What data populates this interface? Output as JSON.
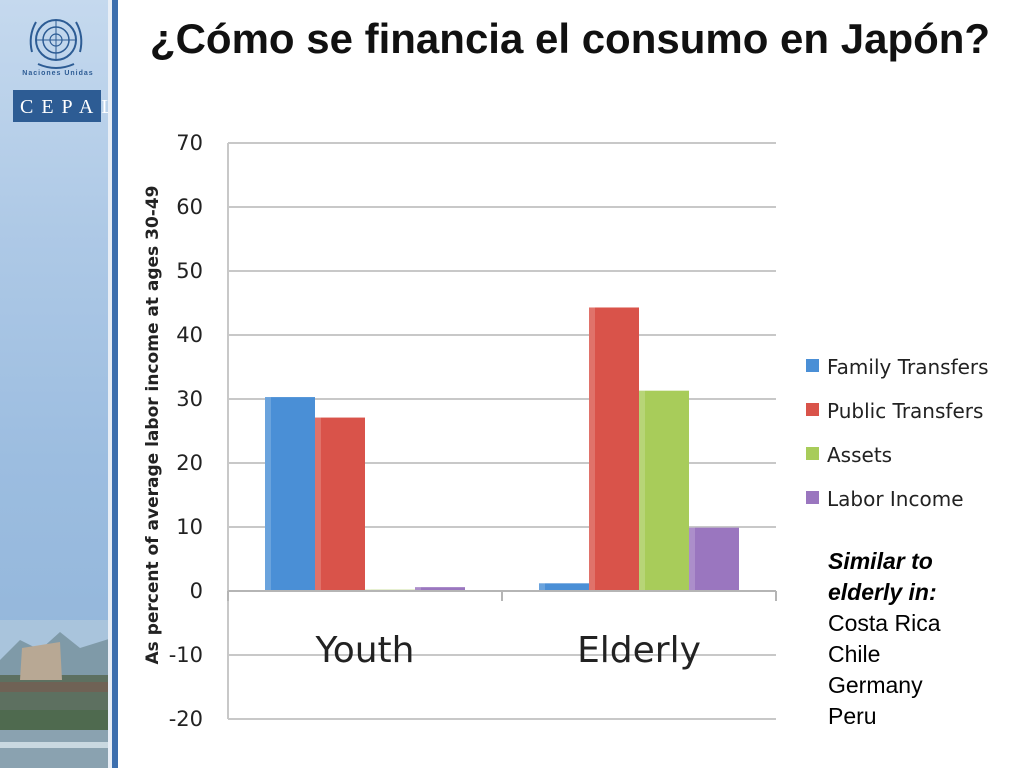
{
  "slide": {
    "title": "¿Cómo se financia el consumo en Japón?"
  },
  "sidebar": {
    "un_label": "Naciones Unidas",
    "cepal_label": "CEPAL"
  },
  "colors": {
    "family_transfers": "#4a8fd6",
    "public_transfers": "#d9534a",
    "assets": "#a8cc5a",
    "labor_income": "#9a76bf"
  },
  "chart_data": {
    "type": "bar",
    "categories": [
      "Youth",
      "Elderly"
    ],
    "series": [
      {
        "name": "Family Transfers",
        "values": [
          30.3,
          1.2
        ]
      },
      {
        "name": "Public Transfers",
        "values": [
          27.1,
          44.3
        ]
      },
      {
        "name": "Assets",
        "values": [
          0.2,
          31.3
        ]
      },
      {
        "name": "Labor Income",
        "values": [
          0.6,
          9.9
        ]
      }
    ],
    "ylabel": "As percent of average labor income at ages 30-49",
    "ylim": [
      -20,
      70
    ],
    "yticks": [
      "70",
      "60",
      "50",
      "40",
      "30",
      "20",
      "10",
      "0",
      "-10",
      "-20"
    ],
    "grid": true,
    "legend_position": "right"
  },
  "note": {
    "heading": "Similar to\nelderly in:",
    "countries": [
      "Costa Rica",
      "Chile",
      "Germany",
      "Peru"
    ]
  }
}
